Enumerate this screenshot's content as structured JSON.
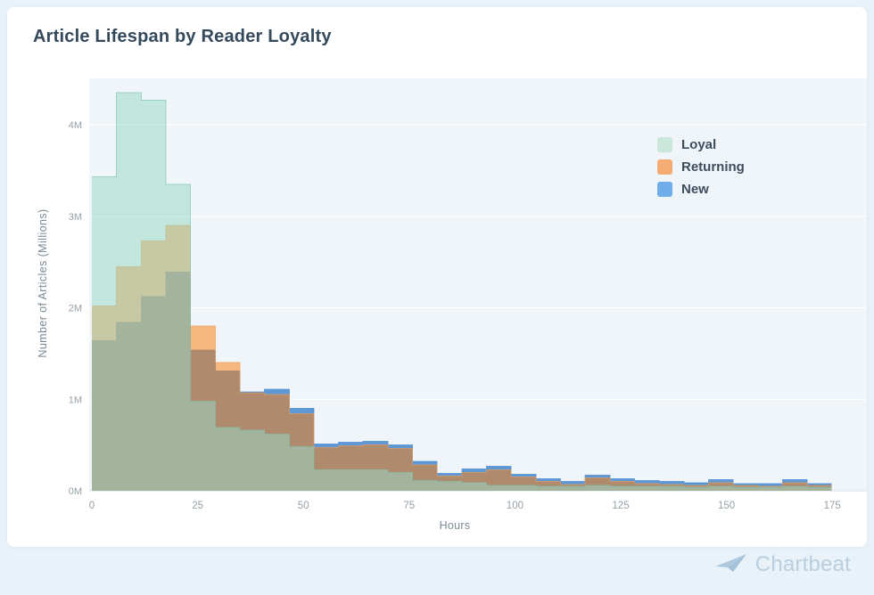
{
  "page": {
    "background_color": "#e9f2f8"
  },
  "card": {
    "background_color": "#ffffff"
  },
  "chart_data": {
    "type": "histogram",
    "mode": "overlay-transparent",
    "title": "Article Lifespan by Reader Loyalty",
    "xlabel": "Hours",
    "ylabel": "Number of Articles (Millions)",
    "xlim": [
      0,
      182
    ],
    "ylim": [
      0,
      4.5
    ],
    "grid": "horizontal",
    "x_tick_values": [
      0,
      25,
      50,
      75,
      100,
      125,
      150,
      175
    ],
    "x_tick_labels": [
      "0",
      "25",
      "50",
      "75",
      "100",
      "125",
      "150",
      "175"
    ],
    "y_tick_values": [
      0,
      1,
      2,
      3,
      4
    ],
    "y_tick_labels": [
      "0M",
      "1M",
      "2M",
      "3M",
      "4M"
    ],
    "bin_width_hours": 5.83,
    "bin_count": 30,
    "bin_starts_hours": [
      0,
      5.8,
      11.7,
      17.5,
      23.3,
      29.2,
      35,
      40.8,
      46.7,
      52.5,
      58.3,
      64.2,
      70,
      75.8,
      81.7,
      87.5,
      93.3,
      99.2,
      105,
      110.8,
      116.7,
      122.5,
      128.3,
      134.2,
      140,
      145.8,
      151.7,
      157.5,
      163.3,
      169.2
    ],
    "unit": "millions of articles",
    "series": [
      {
        "name": "Loyal",
        "fill": "#9ad8c6",
        "fill_opacity": 0.52,
        "outline": "#7cc3ae",
        "values": [
          3.43,
          4.35,
          4.27,
          3.35,
          0.98,
          0.69,
          0.66,
          0.62,
          0.48,
          0.23,
          0.23,
          0.23,
          0.2,
          0.11,
          0.1,
          0.09,
          0.06,
          0.06,
          0.05,
          0.05,
          0.06,
          0.05,
          0.05,
          0.05,
          0.04,
          0.05,
          0.04,
          0.04,
          0.05,
          0.04
        ]
      },
      {
        "name": "Returning",
        "fill": "#ff7c06",
        "fill_opacity": 0.5,
        "outline": "#ec9c55",
        "values": [
          2.02,
          2.45,
          2.73,
          2.9,
          1.8,
          1.4,
          1.07,
          1.05,
          0.84,
          0.47,
          0.49,
          0.5,
          0.46,
          0.28,
          0.16,
          0.2,
          0.23,
          0.15,
          0.1,
          0.07,
          0.14,
          0.1,
          0.08,
          0.07,
          0.06,
          0.09,
          0.06,
          0.05,
          0.09,
          0.06
        ]
      },
      {
        "name": "New",
        "fill": "#1b6cc4",
        "fill_opacity": 0.68,
        "outline": "#3c82cf",
        "values": [
          1.64,
          1.84,
          2.12,
          2.39,
          1.54,
          1.31,
          1.08,
          1.11,
          0.9,
          0.51,
          0.53,
          0.54,
          0.5,
          0.32,
          0.19,
          0.24,
          0.27,
          0.18,
          0.13,
          0.1,
          0.17,
          0.13,
          0.11,
          0.1,
          0.09,
          0.12,
          0.08,
          0.08,
          0.12,
          0.08
        ]
      }
    ],
    "draw_order": [
      "New",
      "Returning",
      "Loyal"
    ],
    "legend": {
      "position": "top-right",
      "items": [
        {
          "label": "Loyal",
          "swatch_color": "#cbe7dc"
        },
        {
          "label": "Returning",
          "swatch_color": "#f5ab72"
        },
        {
          "label": "New",
          "swatch_color": "#6fadea"
        }
      ]
    },
    "plot_background": "#eff5f9",
    "gridline_color": "#ffffff",
    "baseline_color": "#d8e3ea",
    "tick_text_color": "#95a1a8",
    "axis_title_color": "#7b8a93",
    "title_color": "#35495d"
  },
  "footer": {
    "brand": "Chartbeat",
    "brand_color": "#b9cede",
    "icon_color": "#a6c4da"
  }
}
